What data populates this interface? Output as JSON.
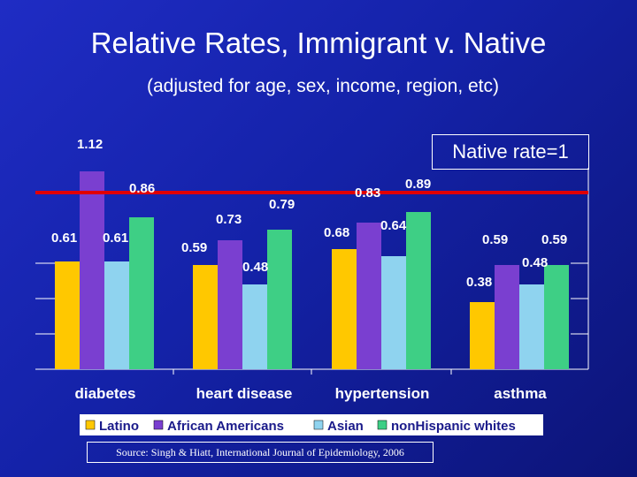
{
  "slide": {
    "title": "Relative Rates, Immigrant v. Native",
    "subtitle": "(adjusted for age, sex, income, region, etc)",
    "native_note": "Native rate=1",
    "source": "Source: Singh & Hiatt, International Journal of Epidemiology, 2006"
  },
  "colors": {
    "latino": "#ffc800",
    "african_americans": "#7a3fd0",
    "asian": "#8fd3ef",
    "nonhispanic_whites": "#3ecf85",
    "reference_line": "#e00000"
  },
  "chart_data": {
    "type": "bar",
    "title": "Relative Rates, Immigrant v. Native",
    "categories": [
      "diabetes",
      "heart disease",
      "hypertension",
      "asthma"
    ],
    "series": [
      {
        "name": "Latino",
        "values": [
          0.61,
          0.59,
          0.68,
          0.38
        ]
      },
      {
        "name": "African Americans",
        "values": [
          1.12,
          0.73,
          0.83,
          0.59
        ]
      },
      {
        "name": "Asian",
        "values": [
          0.61,
          0.48,
          0.64,
          0.48
        ]
      },
      {
        "name": "nonHispanic whites",
        "values": [
          0.86,
          0.79,
          0.89,
          0.59
        ]
      }
    ],
    "value_labels": [
      [
        "0.61",
        "1.12",
        "0.61",
        "0.86"
      ],
      [
        "0.59",
        "0.73",
        "0.48",
        "0.79"
      ],
      [
        "0.68",
        "0.83",
        "0.64",
        "0.89"
      ],
      [
        "0.38",
        "0.59",
        "0.48",
        "0.59"
      ]
    ],
    "reference_line": {
      "value": 1,
      "label": "Native rate=1"
    },
    "ylim": [
      0,
      1.2
    ],
    "xlabel": "",
    "ylabel": "",
    "legend_position": "bottom"
  }
}
